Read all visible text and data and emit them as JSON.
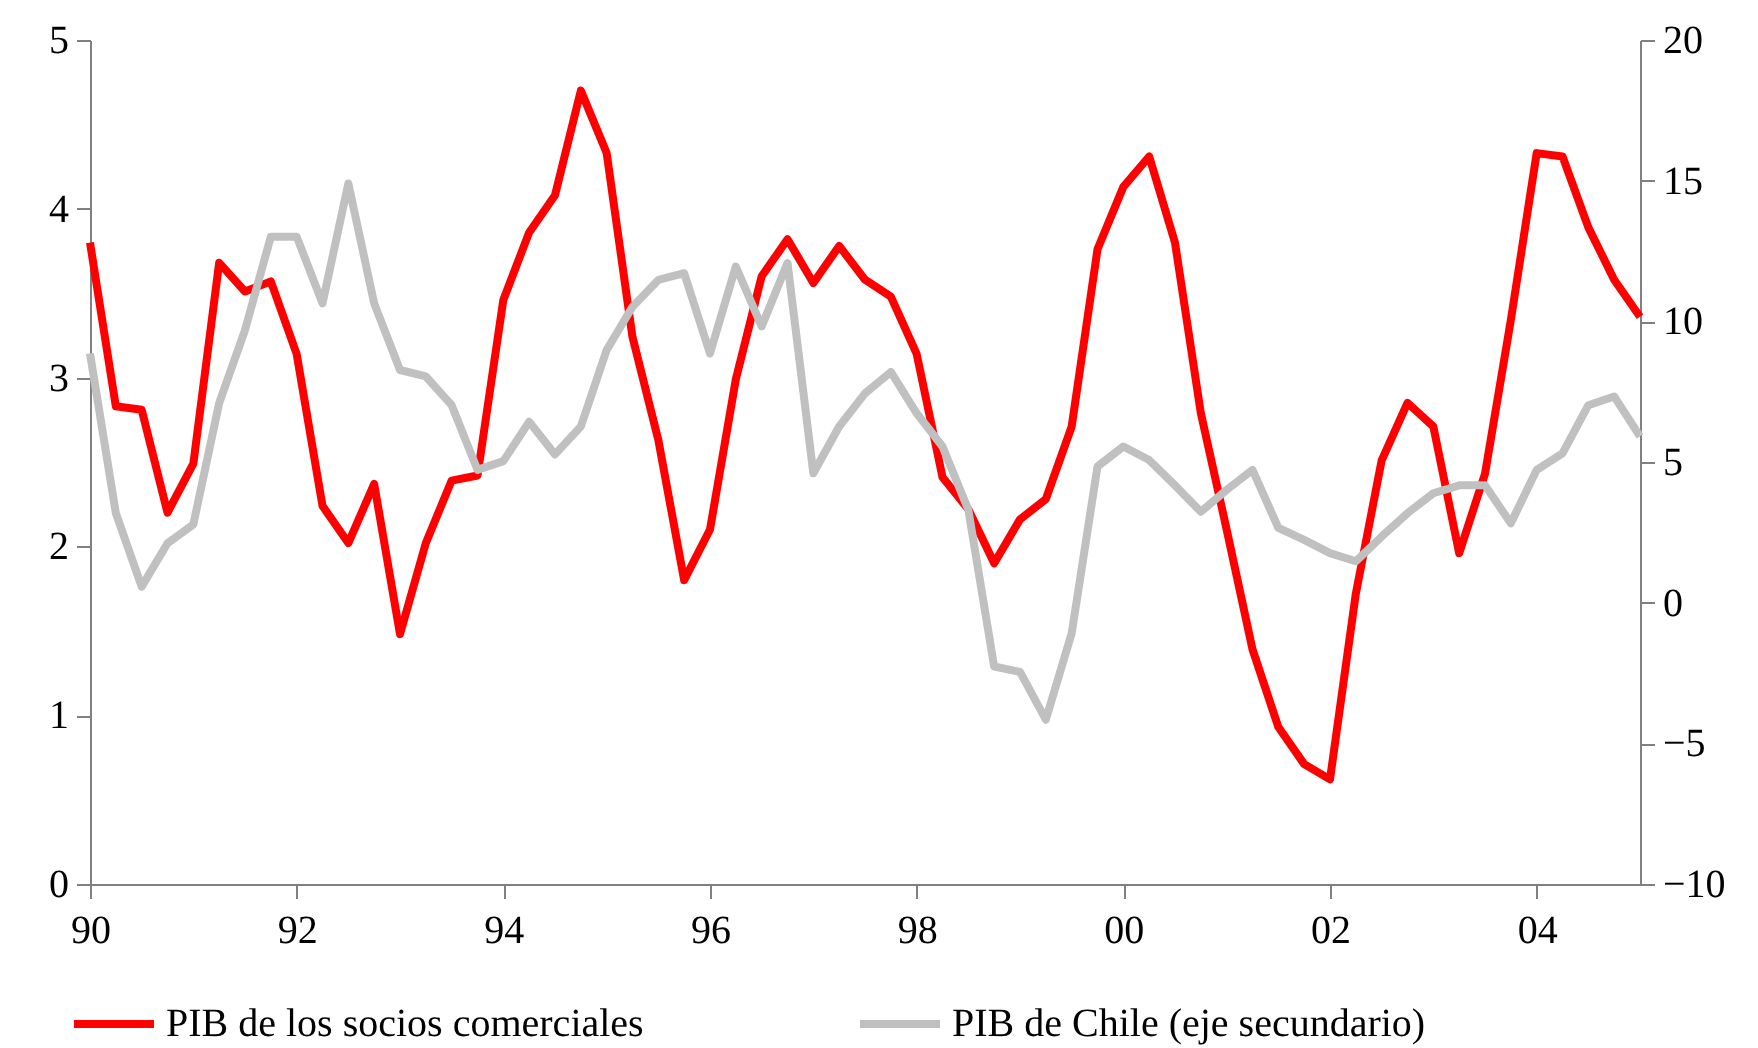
{
  "chart_data": {
    "type": "line",
    "xlim": [
      1990,
      2005
    ],
    "xticks": [
      {
        "value": 1990,
        "label": "90"
      },
      {
        "value": 1992,
        "label": "92"
      },
      {
        "value": 1994,
        "label": "94"
      },
      {
        "value": 1996,
        "label": "96"
      },
      {
        "value": 1998,
        "label": "98"
      },
      {
        "value": 2000,
        "label": "00"
      },
      {
        "value": 2002,
        "label": "02"
      },
      {
        "value": 2004,
        "label": "04"
      }
    ],
    "x": [
      1990,
      1990.25,
      1990.5,
      1990.75,
      1991,
      1991.25,
      1991.5,
      1991.75,
      1992,
      1992.25,
      1992.5,
      1992.75,
      1993,
      1993.25,
      1993.5,
      1993.75,
      1994,
      1994.25,
      1994.5,
      1994.75,
      1995,
      1995.25,
      1995.5,
      1995.75,
      1996,
      1996.25,
      1996.5,
      1996.75,
      1997,
      1997.25,
      1997.5,
      1997.75,
      1998,
      1998.25,
      1998.5,
      1998.75,
      1999,
      1999.25,
      1999.5,
      1999.75,
      2000,
      2000.25,
      2000.5,
      2000.75,
      2001,
      2001.25,
      2001.5,
      2001.75,
      2002,
      2002.25,
      2002.5,
      2002.75,
      2003,
      2003.25,
      2003.5,
      2003.75,
      2004,
      2004.25,
      2004.5,
      2004.75,
      2005
    ],
    "ylim": [
      0,
      5
    ],
    "yticks": [
      0,
      1,
      2,
      3,
      4,
      5
    ],
    "y2lim": [
      -10,
      20
    ],
    "y2ticks": [
      -10,
      -5,
      0,
      5,
      10,
      15,
      20
    ],
    "grid": false,
    "legend": "bottom",
    "series": [
      {
        "name": "PIB de los socios comerciales",
        "color": "#ff0000",
        "values": [
          3.8,
          2.83,
          2.81,
          2.2,
          2.49,
          3.68,
          3.51,
          3.57,
          3.14,
          2.24,
          2.02,
          2.37,
          1.48,
          2.02,
          2.39,
          2.42,
          3.46,
          3.86,
          4.08,
          4.7,
          4.33,
          3.24,
          2.63,
          1.8,
          2.1,
          2.99,
          3.6,
          3.82,
          3.56,
          3.78,
          3.58,
          3.48,
          3.14,
          2.41,
          2.22,
          1.9,
          2.16,
          2.28,
          2.71,
          3.76,
          4.13,
          4.31,
          3.8,
          2.79,
          2.1,
          1.39,
          0.93,
          0.71,
          0.62,
          1.72,
          2.51,
          2.85,
          2.71,
          1.96,
          2.43,
          3.34,
          4.33,
          4.31,
          3.89,
          3.58,
          3.36
        ]
      },
      {
        "name": "PIB de Chile (eje secundario)",
        "color": "#c0c0c0",
        "axis": "y2",
        "values": [
          8.86,
          3.18,
          0.57,
          2.11,
          2.78,
          7.09,
          9.69,
          13.01,
          13.01,
          10.64,
          14.9,
          10.64,
          8.27,
          8.04,
          7.02,
          4.72,
          5.03,
          6.43,
          5.27,
          6.26,
          8.98,
          10.52,
          11.47,
          11.71,
          8.86,
          11.95,
          9.82,
          12.07,
          4.6,
          6.26,
          7.44,
          8.2,
          6.73,
          5.55,
          3.3,
          -2.27,
          -2.46,
          -4.16,
          -1.09,
          4.84,
          5.55,
          5.07,
          4.17,
          3.23,
          4.01,
          4.72,
          2.66,
          2.23,
          1.76,
          1.47,
          2.35,
          3.18,
          3.89,
          4.17,
          4.17,
          2.82,
          4.72,
          5.31,
          7.02,
          7.33,
          5.91
        ]
      }
    ]
  }
}
